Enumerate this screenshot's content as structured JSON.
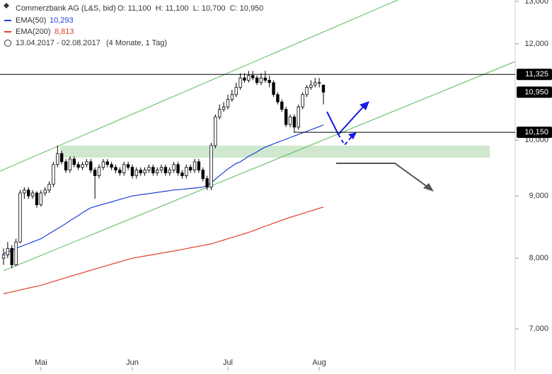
{
  "chart_data": {
    "type": "candlestick",
    "header": {
      "title": "Commerzbank AG (L&S, bid)",
      "ohlc": "O: 11,100  H: 11,100  L: 10,700  C: 10,950",
      "range": "13.04.2017 - 02.08.2017",
      "duration": "(4 Monate, 1 Tag)"
    },
    "categories": [
      null,
      null,
      null,
      null,
      null,
      null,
      null,
      null,
      null,
      "Mai",
      null,
      null,
      null,
      null,
      null,
      null,
      null,
      null,
      null,
      null,
      null,
      null,
      null,
      null,
      null,
      null,
      null,
      null,
      null,
      null,
      null,
      "Jun",
      null,
      null,
      null,
      null,
      null,
      null,
      null,
      null,
      null,
      null,
      null,
      null,
      null,
      null,
      null,
      null,
      null,
      null,
      null,
      null,
      null,
      null,
      "Jul",
      null,
      null,
      null,
      null,
      null,
      null,
      null,
      null,
      null,
      null,
      null,
      null,
      null,
      null,
      null,
      null,
      null,
      null,
      null,
      null,
      null,
      "Aug",
      null
    ],
    "open": [
      8000,
      8050,
      8150,
      7900,
      8250,
      9050,
      9100,
      9000,
      9050,
      8850,
      9050,
      9100,
      9200,
      9550,
      9750,
      9600,
      9450,
      9650,
      9550,
      9500,
      9550,
      9600,
      9450,
      9350,
      9500,
      9600,
      9550,
      9500,
      9450,
      9400,
      9550,
      9500,
      9350,
      9450,
      9400,
      9450,
      9500,
      9400,
      9450,
      9500,
      9400,
      9450,
      9550,
      9400,
      9350,
      9500,
      9450,
      9600,
      9450,
      9300,
      9150,
      9900,
      10450,
      10600,
      10650,
      10800,
      10900,
      11050,
      11250,
      11200,
      11300,
      11250,
      11150,
      11250,
      11200,
      11150,
      10900,
      10750,
      10600,
      10300,
      10450,
      10250,
      10650,
      10900,
      11050,
      11100,
      11150,
      11100
    ],
    "high": [
      8150,
      8250,
      8200,
      8300,
      9100,
      9150,
      9150,
      9100,
      9080,
      9100,
      9150,
      9250,
      9600,
      9900,
      9800,
      9650,
      9700,
      9700,
      9600,
      9600,
      9650,
      9650,
      9500,
      9550,
      9650,
      9650,
      9600,
      9550,
      9500,
      9600,
      9600,
      9550,
      9500,
      9500,
      9500,
      9550,
      9550,
      9500,
      9550,
      9550,
      9500,
      9600,
      9600,
      9450,
      9550,
      9550,
      9650,
      9650,
      9500,
      9350,
      9950,
      10500,
      10700,
      10750,
      10900,
      11000,
      11150,
      11350,
      11350,
      11400,
      11400,
      11300,
      11350,
      11400,
      11300,
      11200,
      10950,
      10800,
      10650,
      10500,
      10500,
      10700,
      10950,
      11100,
      11200,
      11250,
      11250,
      11100
    ],
    "low": [
      7900,
      8000,
      7850,
      7880,
      8230,
      8950,
      8950,
      8950,
      8800,
      8820,
      9000,
      9050,
      9150,
      9500,
      9550,
      9400,
      9400,
      9500,
      9450,
      9450,
      9500,
      9400,
      8950,
      9300,
      9450,
      9500,
      9450,
      9400,
      9350,
      9350,
      9450,
      9300,
      9300,
      9350,
      9350,
      9400,
      9350,
      9350,
      9400,
      9350,
      9350,
      9400,
      9350,
      9300,
      9300,
      9400,
      9400,
      9400,
      9250,
      9100,
      9100,
      9850,
      10400,
      10550,
      10600,
      10750,
      10850,
      11000,
      11150,
      11150,
      11200,
      11100,
      11100,
      11150,
      11050,
      10850,
      10700,
      10550,
      10250,
      10250,
      10150,
      10200,
      10600,
      10850,
      11000,
      11050,
      11050,
      10700
    ],
    "close": [
      8050,
      8150,
      7900,
      8250,
      9050,
      9100,
      9000,
      9050,
      8850,
      9050,
      9100,
      9200,
      9550,
      9750,
      9600,
      9450,
      9650,
      9550,
      9500,
      9550,
      9600,
      9450,
      9350,
      9500,
      9600,
      9550,
      9500,
      9450,
      9400,
      9550,
      9500,
      9350,
      9450,
      9400,
      9450,
      9500,
      9400,
      9450,
      9500,
      9400,
      9450,
      9550,
      9400,
      9350,
      9500,
      9450,
      9600,
      9450,
      9300,
      9150,
      9900,
      10450,
      10600,
      10650,
      10800,
      10900,
      11050,
      11250,
      11200,
      11300,
      11250,
      11150,
      11250,
      11200,
      11150,
      10900,
      10750,
      10600,
      10300,
      10450,
      10250,
      10650,
      10900,
      11050,
      11100,
      11150,
      11150,
      10950
    ],
    "series": [
      {
        "name": "EMA(50)",
        "color": "#1f3fd6",
        "last_label": "10,293",
        "values": [
          8070,
          8095,
          8120,
          8150,
          8175,
          8200,
          8225,
          8250,
          8275,
          8300,
          8340,
          8380,
          8420,
          8460,
          8500,
          8540,
          8590,
          8630,
          8670,
          8720,
          8760,
          8800,
          8820,
          8840,
          8860,
          8880,
          8900,
          8920,
          8940,
          8960,
          8980,
          9000,
          9010,
          9020,
          9030,
          9040,
          9050,
          9060,
          9070,
          9080,
          9090,
          9100,
          9107,
          9114,
          9121,
          9128,
          9135,
          9142,
          9150,
          9180,
          9230,
          9290,
          9350,
          9410,
          9470,
          9520,
          9570,
          9600,
          9650,
          9700,
          9740,
          9780,
          9830,
          9870,
          9900,
          9930,
          9960,
          9990,
          10020,
          10050,
          10080,
          10110,
          10140,
          10170,
          10200,
          10230,
          10260,
          10293
        ]
      },
      {
        "name": "EMA(200)",
        "color": "#e0402a",
        "last_label": "8,813",
        "values": [
          7480,
          7493,
          7507,
          7520,
          7533,
          7547,
          7560,
          7573,
          7587,
          7600,
          7618,
          7637,
          7655,
          7673,
          7692,
          7710,
          7728,
          7747,
          7765,
          7783,
          7802,
          7820,
          7838,
          7856,
          7874,
          7892,
          7910,
          7928,
          7946,
          7964,
          7982,
          8000,
          8011,
          8022,
          8033,
          8044,
          8055,
          8066,
          8077,
          8088,
          8099,
          8110,
          8122,
          8134,
          8146,
          8159,
          8171,
          8183,
          8195,
          8208,
          8220,
          8240,
          8260,
          8280,
          8300,
          8320,
          8340,
          8360,
          8380,
          8400,
          8424,
          8449,
          8473,
          8498,
          8522,
          8547,
          8571,
          8596,
          8620,
          8641,
          8663,
          8684,
          8706,
          8727,
          8749,
          8770,
          8792,
          8813
        ]
      }
    ],
    "levels": [
      {
        "value": 11325,
        "label": "11,325"
      },
      {
        "value": 10150,
        "label": "10,150"
      }
    ],
    "last_price": {
      "value": 10950,
      "label": "10,950"
    },
    "log_scale": true,
    "ylim": [
      6470,
      13035
    ],
    "yticks": [
      {
        "value": 7000,
        "label": "7,000"
      },
      {
        "value": 8000,
        "label": "8,000"
      },
      {
        "value": 9000,
        "label": "9,000"
      },
      {
        "value": 10000,
        "label": "10,000"
      },
      {
        "value": 12000,
        "label": "12,000"
      },
      {
        "value": 13000,
        "label": "13,000"
      }
    ]
  }
}
